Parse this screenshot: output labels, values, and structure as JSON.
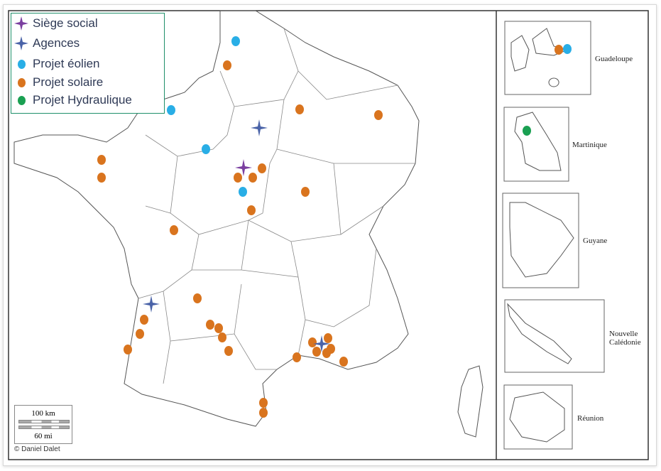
{
  "legend": {
    "items": [
      {
        "key": "siege",
        "label": "Siège social",
        "symbol": "star",
        "color": "#7b3fa0"
      },
      {
        "key": "agence",
        "label": "Agences",
        "symbol": "star",
        "color": "#4a63a8"
      },
      {
        "key": "eolien",
        "label": "Projet éolien",
        "symbol": "dot",
        "color": "#29aee6"
      },
      {
        "key": "solaire",
        "label": "Projet solaire",
        "symbol": "dot",
        "color": "#d9741e"
      },
      {
        "key": "hydraulique",
        "label": "Projet Hydraulique",
        "symbol": "dot",
        "color": "#1aa052"
      }
    ]
  },
  "scale": {
    "km": "100 km",
    "mi": "60 mi"
  },
  "credit": "© Daniel Dalet",
  "insets": {
    "guadeloupe": "Guadeloupe",
    "martinique": "Martinique",
    "guyane": "Guyane",
    "nc_line1": "Nouvelle",
    "nc_line2": "Calédonie",
    "reunion": "Réunion"
  }
}
